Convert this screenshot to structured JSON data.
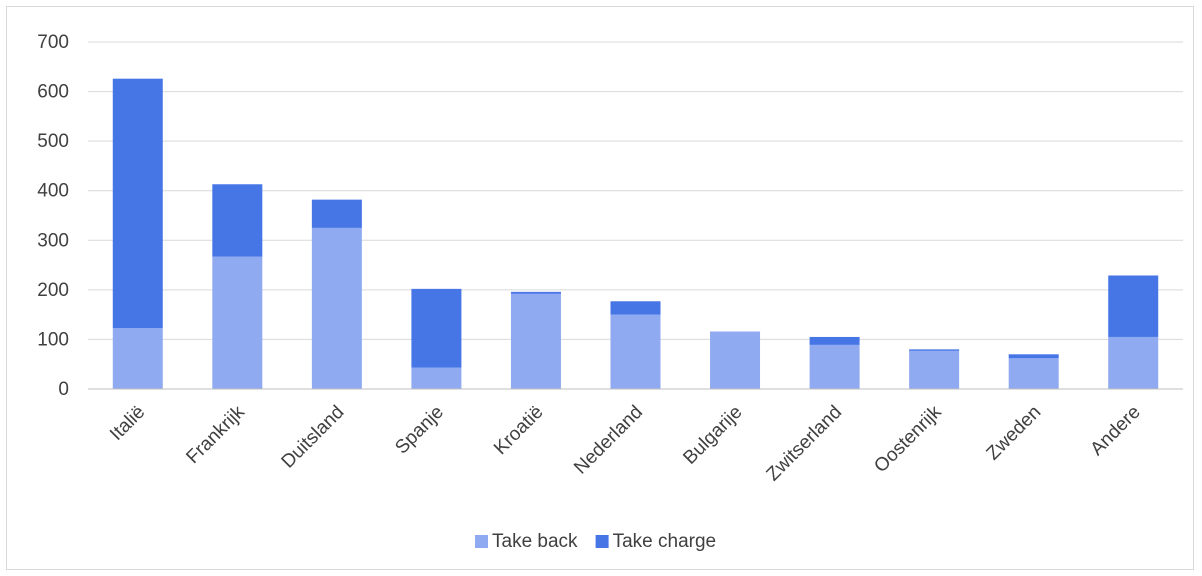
{
  "chart_data": {
    "type": "bar",
    "stacked": true,
    "categories": [
      "Italië",
      "Frankrijk",
      "Duitsland",
      "Spanje",
      "Kroatië",
      "Nederland",
      "Bulgarije",
      "Zwitserland",
      "Oostenrijk",
      "Zweden",
      "Andere"
    ],
    "series": [
      {
        "name": "Take back",
        "color": "#8faaf0",
        "values": [
          123,
          267,
          325,
          43,
          192,
          150,
          116,
          89,
          77,
          62,
          105
        ]
      },
      {
        "name": "Take charge",
        "color": "#4676e6",
        "values": [
          503,
          146,
          57,
          159,
          4,
          27,
          0,
          16,
          3,
          8,
          124
        ]
      }
    ],
    "ylim": [
      0,
      700
    ],
    "yticks": [
      0,
      100,
      200,
      300,
      400,
      500,
      600,
      700
    ],
    "grid": true,
    "legend": "bottom",
    "title": "",
    "xlabel": "",
    "ylabel": ""
  }
}
